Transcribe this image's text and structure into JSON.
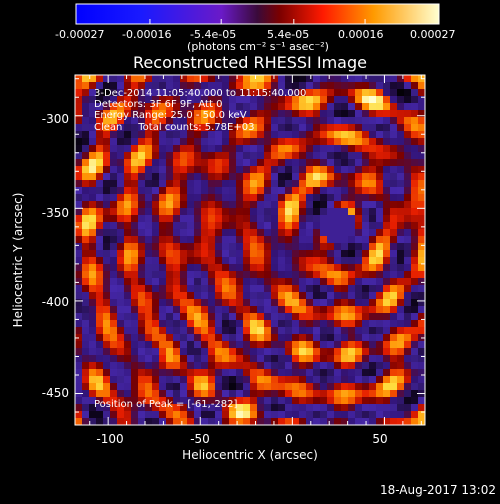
{
  "colorbar": {
    "tick_labels": [
      "-0.00027",
      "-0.00016",
      "-5.4e-05",
      "5.4e-05",
      "0.00016",
      "0.00027"
    ],
    "units_label": "(photons cm⁻² s⁻¹ asec⁻²)",
    "range": [
      -0.00027,
      0.00027
    ]
  },
  "plot": {
    "title": "Reconstructed RHESSI Image",
    "info_lines": [
      "3-Dec-2014 11:05:40.000 to 11:15:40.000",
      "Detectors: 3F 6F 9F, Att 0",
      "Energy Range: 25.0 - 50.0 keV",
      "Clean     Total counts: 5.78E+03"
    ],
    "peak_label": "Position of Peak = [-61,-282]",
    "xlabel": "Heliocentric X (arcsec)",
    "ylabel": "Heliocentric Y (arcsec)",
    "x_ticks": [
      "-100",
      "-50",
      "0",
      "50"
    ],
    "y_ticks": [
      "-300",
      "-350",
      "-400",
      "-450"
    ],
    "x_range": [
      -118,
      72
    ],
    "y_range": [
      -467,
      -278
    ]
  },
  "footer": {
    "timestamp": "18-Aug-2017 13:02"
  }
}
